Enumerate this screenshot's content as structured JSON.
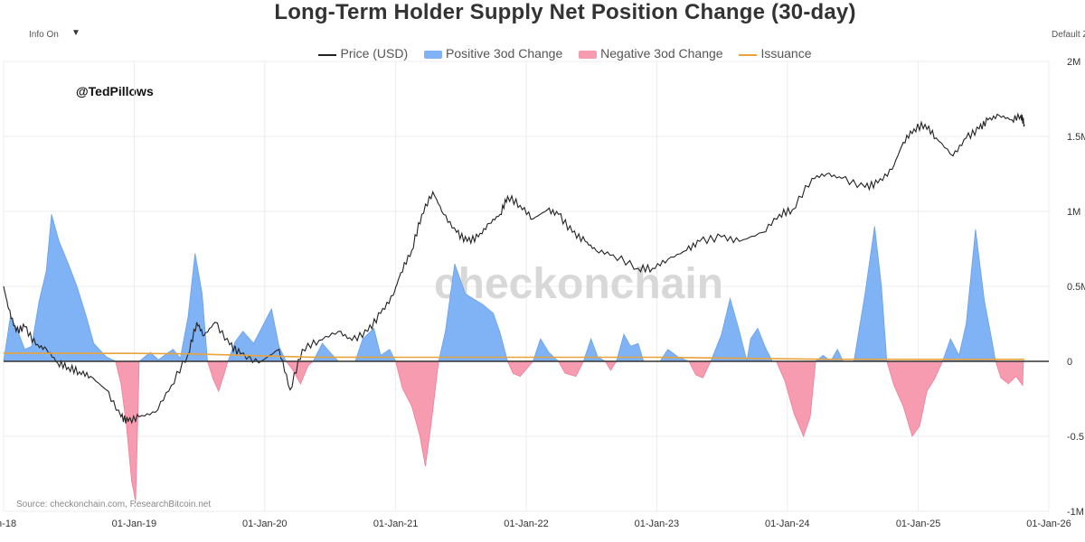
{
  "header": {
    "title": "Long-Term Holder Supply Net Position Change (30-day)",
    "info_toggle": "Info On",
    "default_zoom": "Default Z"
  },
  "annotations": {
    "handle": "@TedPillows",
    "watermark": "checkonchain",
    "source": "Source: checkonchain.com, ResearchBitcoin.net"
  },
  "colors": {
    "price": "#222222",
    "positive": "#7fb3f5",
    "negative": "#f79bb0",
    "issuance": "#e8a33b",
    "zero_line": "#333333",
    "grid": "#ececec"
  },
  "chart_data": {
    "type": "area",
    "title": "Long-Term Holder Supply Net Position Change (30-day)",
    "legend": [
      "Price (USD)",
      "Positive 3od Change",
      "Negative 3od Change",
      "Issuance"
    ],
    "legend_position": "top-center",
    "grid": true,
    "x_tick_labels": [
      "an-18",
      "01-Jan-19",
      "01-Jan-20",
      "01-Jan-21",
      "01-Jan-22",
      "01-Jan-23",
      "01-Jan-24",
      "01-Jan-25",
      "01-Jan-26"
    ],
    "y_tick_labels": [
      "2M",
      "1.5M",
      "1M",
      "0.5M",
      "0",
      "-0.5",
      "-1M"
    ],
    "ylim": [
      -1000000,
      2000000
    ],
    "xlim": [
      "2018-01-01",
      "2026-01-01"
    ],
    "series": [
      {
        "name": "Positive 3od Change",
        "type": "area",
        "points": [
          [
            "2018-01-01",
            0
          ],
          [
            "2018-01-20",
            300000
          ],
          [
            "2018-02-10",
            200000
          ],
          [
            "2018-03-01",
            80000
          ],
          [
            "2018-03-20",
            100000
          ],
          [
            "2018-04-10",
            400000
          ],
          [
            "2018-04-30",
            600000
          ],
          [
            "2018-05-15",
            980000
          ],
          [
            "2018-06-05",
            800000
          ],
          [
            "2018-07-01",
            650000
          ],
          [
            "2018-07-25",
            500000
          ],
          [
            "2018-08-20",
            300000
          ],
          [
            "2018-09-10",
            120000
          ],
          [
            "2018-10-15",
            30000
          ],
          [
            "2018-11-10",
            0
          ],
          [
            "2019-01-15",
            0
          ],
          [
            "2019-02-15",
            60000
          ],
          [
            "2019-03-10",
            10000
          ],
          [
            "2019-04-01",
            50000
          ],
          [
            "2019-04-20",
            80000
          ],
          [
            "2019-05-10",
            20000
          ],
          [
            "2019-06-01",
            300000
          ],
          [
            "2019-06-20",
            720000
          ],
          [
            "2019-07-10",
            450000
          ],
          [
            "2019-07-25",
            0
          ],
          [
            "2019-09-20",
            0
          ],
          [
            "2019-10-10",
            130000
          ],
          [
            "2019-11-01",
            200000
          ],
          [
            "2019-12-01",
            120000
          ],
          [
            "2019-12-25",
            230000
          ],
          [
            "2020-01-20",
            350000
          ],
          [
            "2020-02-10",
            100000
          ],
          [
            "2020-03-01",
            0
          ],
          [
            "2020-05-15",
            0
          ],
          [
            "2020-06-10",
            120000
          ],
          [
            "2020-07-05",
            50000
          ],
          [
            "2020-07-25",
            0
          ],
          [
            "2020-09-10",
            0
          ],
          [
            "2020-10-01",
            150000
          ],
          [
            "2020-11-01",
            220000
          ],
          [
            "2020-11-20",
            40000
          ],
          [
            "2020-12-15",
            80000
          ],
          [
            "2021-01-01",
            0
          ],
          [
            "2021-05-01",
            0
          ],
          [
            "2021-05-20",
            200000
          ],
          [
            "2021-06-15",
            650000
          ],
          [
            "2021-07-15",
            450000
          ],
          [
            "2021-09-01",
            380000
          ],
          [
            "2021-10-01",
            320000
          ],
          [
            "2021-10-20",
            190000
          ],
          [
            "2021-11-10",
            0
          ],
          [
            "2022-01-20",
            0
          ],
          [
            "2022-02-10",
            150000
          ],
          [
            "2022-03-05",
            60000
          ],
          [
            "2022-04-01",
            0
          ],
          [
            "2022-06-10",
            0
          ],
          [
            "2022-07-01",
            150000
          ],
          [
            "2022-07-20",
            30000
          ],
          [
            "2022-08-10",
            0
          ],
          [
            "2022-09-10",
            0
          ],
          [
            "2022-10-01",
            180000
          ],
          [
            "2022-10-20",
            100000
          ],
          [
            "2022-11-10",
            120000
          ],
          [
            "2022-11-25",
            0
          ],
          [
            "2023-01-10",
            0
          ],
          [
            "2023-02-01",
            80000
          ],
          [
            "2023-03-01",
            30000
          ],
          [
            "2023-04-01",
            0
          ],
          [
            "2023-06-01",
            0
          ],
          [
            "2023-07-01",
            180000
          ],
          [
            "2023-07-25",
            420000
          ],
          [
            "2023-08-20",
            200000
          ],
          [
            "2023-09-10",
            0
          ],
          [
            "2023-09-20",
            150000
          ],
          [
            "2023-10-10",
            220000
          ],
          [
            "2023-11-01",
            90000
          ],
          [
            "2023-11-20",
            0
          ],
          [
            "2024-03-20",
            0
          ],
          [
            "2024-04-10",
            40000
          ],
          [
            "2024-05-01",
            0
          ],
          [
            "2024-05-20",
            80000
          ],
          [
            "2024-06-05",
            0
          ],
          [
            "2024-07-05",
            0
          ],
          [
            "2024-08-05",
            450000
          ],
          [
            "2024-09-01",
            900000
          ],
          [
            "2024-09-20",
            500000
          ],
          [
            "2024-10-05",
            0
          ],
          [
            "2025-03-10",
            0
          ],
          [
            "2025-04-01",
            150000
          ],
          [
            "2025-04-25",
            40000
          ],
          [
            "2025-05-15",
            250000
          ],
          [
            "2025-06-10",
            880000
          ],
          [
            "2025-07-05",
            400000
          ],
          [
            "2025-07-25",
            150000
          ],
          [
            "2025-08-05",
            0
          ]
        ]
      },
      {
        "name": "Negative 3od Change",
        "type": "area",
        "points": [
          [
            "2018-11-10",
            0
          ],
          [
            "2018-11-25",
            -150000
          ],
          [
            "2018-12-10",
            -420000
          ],
          [
            "2018-12-25",
            -800000
          ],
          [
            "2019-01-05",
            -930000
          ],
          [
            "2019-01-12",
            -300000
          ],
          [
            "2019-01-15",
            0
          ],
          [
            "2019-07-25",
            0
          ],
          [
            "2019-08-10",
            -120000
          ],
          [
            "2019-08-25",
            -200000
          ],
          [
            "2019-09-10",
            -80000
          ],
          [
            "2019-09-20",
            0
          ],
          [
            "2020-03-01",
            0
          ],
          [
            "2020-03-20",
            -60000
          ],
          [
            "2020-04-10",
            -150000
          ],
          [
            "2020-05-01",
            -30000
          ],
          [
            "2020-05-15",
            0
          ],
          [
            "2021-01-01",
            0
          ],
          [
            "2021-01-20",
            -180000
          ],
          [
            "2021-02-15",
            -300000
          ],
          [
            "2021-03-10",
            -500000
          ],
          [
            "2021-03-25",
            -700000
          ],
          [
            "2021-04-10",
            -420000
          ],
          [
            "2021-04-25",
            -120000
          ],
          [
            "2021-05-01",
            0
          ],
          [
            "2021-11-10",
            0
          ],
          [
            "2021-11-25",
            -80000
          ],
          [
            "2021-12-15",
            -100000
          ],
          [
            "2022-01-20",
            0
          ],
          [
            "2022-04-01",
            0
          ],
          [
            "2022-04-20",
            -80000
          ],
          [
            "2022-05-20",
            -100000
          ],
          [
            "2022-06-10",
            0
          ],
          [
            "2022-08-10",
            0
          ],
          [
            "2022-08-25",
            -60000
          ],
          [
            "2022-09-10",
            0
          ],
          [
            "2023-04-01",
            0
          ],
          [
            "2023-04-20",
            -90000
          ],
          [
            "2023-05-10",
            -110000
          ],
          [
            "2023-06-01",
            0
          ],
          [
            "2023-12-01",
            0
          ],
          [
            "2023-12-25",
            -130000
          ],
          [
            "2024-01-20",
            -350000
          ],
          [
            "2024-02-15",
            -500000
          ],
          [
            "2024-03-05",
            -370000
          ],
          [
            "2024-03-20",
            0
          ],
          [
            "2024-10-05",
            0
          ],
          [
            "2024-10-25",
            -160000
          ],
          [
            "2024-11-20",
            -300000
          ],
          [
            "2024-12-15",
            -500000
          ],
          [
            "2025-01-05",
            -430000
          ],
          [
            "2025-01-25",
            -200000
          ],
          [
            "2025-02-15",
            -120000
          ],
          [
            "2025-03-10",
            0
          ],
          [
            "2025-08-05",
            0
          ],
          [
            "2025-08-20",
            -110000
          ],
          [
            "2025-09-10",
            -150000
          ],
          [
            "2025-10-01",
            -100000
          ],
          [
            "2025-10-20",
            -160000
          ],
          [
            "2025-10-22",
            0
          ]
        ]
      },
      {
        "name": "Price (USD)",
        "type": "line",
        "units": "pixel-scale mapped to left range (relative)",
        "points": [
          [
            "2018-01-01",
            0.5
          ],
          [
            "2018-01-15",
            0.45
          ],
          [
            "2018-02-05",
            0.4
          ],
          [
            "2018-03-01",
            0.41
          ],
          [
            "2018-04-01",
            0.37
          ],
          [
            "2018-05-01",
            0.36
          ],
          [
            "2018-06-01",
            0.33
          ],
          [
            "2018-07-01",
            0.32
          ],
          [
            "2018-08-01",
            0.31
          ],
          [
            "2018-09-01",
            0.3
          ],
          [
            "2018-10-15",
            0.27
          ],
          [
            "2018-11-25",
            0.21
          ],
          [
            "2018-12-15",
            0.2
          ],
          [
            "2019-01-15",
            0.21
          ],
          [
            "2019-03-01",
            0.22
          ],
          [
            "2019-04-15",
            0.28
          ],
          [
            "2019-06-01",
            0.35
          ],
          [
            "2019-06-25",
            0.42
          ],
          [
            "2019-07-15",
            0.39
          ],
          [
            "2019-08-15",
            0.42
          ],
          [
            "2019-09-25",
            0.37
          ],
          [
            "2019-10-25",
            0.35
          ],
          [
            "2019-12-15",
            0.33
          ],
          [
            "2020-02-10",
            0.36
          ],
          [
            "2020-03-12",
            0.27
          ],
          [
            "2020-04-15",
            0.36
          ],
          [
            "2020-06-01",
            0.38
          ],
          [
            "2020-07-25",
            0.4
          ],
          [
            "2020-09-01",
            0.38
          ],
          [
            "2020-10-15",
            0.4
          ],
          [
            "2020-11-20",
            0.44
          ],
          [
            "2020-12-25",
            0.48
          ],
          [
            "2021-01-15",
            0.53
          ],
          [
            "2021-02-15",
            0.58
          ],
          [
            "2021-03-15",
            0.66
          ],
          [
            "2021-04-15",
            0.71
          ],
          [
            "2021-05-15",
            0.66
          ],
          [
            "2021-06-20",
            0.62
          ],
          [
            "2021-07-20",
            0.6
          ],
          [
            "2021-08-20",
            0.61
          ],
          [
            "2021-09-20",
            0.64
          ],
          [
            "2021-10-20",
            0.66
          ],
          [
            "2021-11-10",
            0.7
          ],
          [
            "2021-12-15",
            0.68
          ],
          [
            "2022-01-20",
            0.65
          ],
          [
            "2022-03-01",
            0.67
          ],
          [
            "2022-04-01",
            0.66
          ],
          [
            "2022-05-10",
            0.62
          ],
          [
            "2022-06-15",
            0.6
          ],
          [
            "2022-07-15",
            0.58
          ],
          [
            "2022-09-01",
            0.57
          ],
          [
            "2022-11-10",
            0.54
          ],
          [
            "2022-12-20",
            0.54
          ],
          [
            "2023-02-01",
            0.56
          ],
          [
            "2023-03-25",
            0.58
          ],
          [
            "2023-05-01",
            0.6
          ],
          [
            "2023-07-01",
            0.61
          ],
          [
            "2023-08-20",
            0.6
          ],
          [
            "2023-10-25",
            0.62
          ],
          [
            "2023-12-10",
            0.66
          ],
          [
            "2024-01-15",
            0.67
          ],
          [
            "2024-03-10",
            0.74
          ],
          [
            "2024-04-20",
            0.75
          ],
          [
            "2024-06-01",
            0.74
          ],
          [
            "2024-08-05",
            0.72
          ],
          [
            "2024-09-10",
            0.73
          ],
          [
            "2024-10-20",
            0.76
          ],
          [
            "2024-11-20",
            0.82
          ],
          [
            "2024-12-20",
            0.85
          ],
          [
            "2025-01-20",
            0.86
          ],
          [
            "2025-02-20",
            0.83
          ],
          [
            "2025-04-08",
            0.79
          ],
          [
            "2025-05-15",
            0.83
          ],
          [
            "2025-06-20",
            0.85
          ],
          [
            "2025-07-15",
            0.87
          ],
          [
            "2025-08-15",
            0.88
          ],
          [
            "2025-09-20",
            0.87
          ],
          [
            "2025-10-15",
            0.88
          ],
          [
            "2025-10-25",
            0.86
          ]
        ]
      },
      {
        "name": "Issuance",
        "type": "line",
        "points": [
          [
            "2018-01-01",
            55000
          ],
          [
            "2019-01-01",
            53000
          ],
          [
            "2019-06-01",
            50000
          ],
          [
            "2020-05-11",
            28000
          ],
          [
            "2021-01-01",
            27000
          ],
          [
            "2022-01-01",
            27000
          ],
          [
            "2023-01-01",
            27000
          ],
          [
            "2024-04-20",
            14000
          ],
          [
            "2025-01-01",
            13500
          ],
          [
            "2025-10-25",
            13500
          ]
        ]
      }
    ]
  }
}
